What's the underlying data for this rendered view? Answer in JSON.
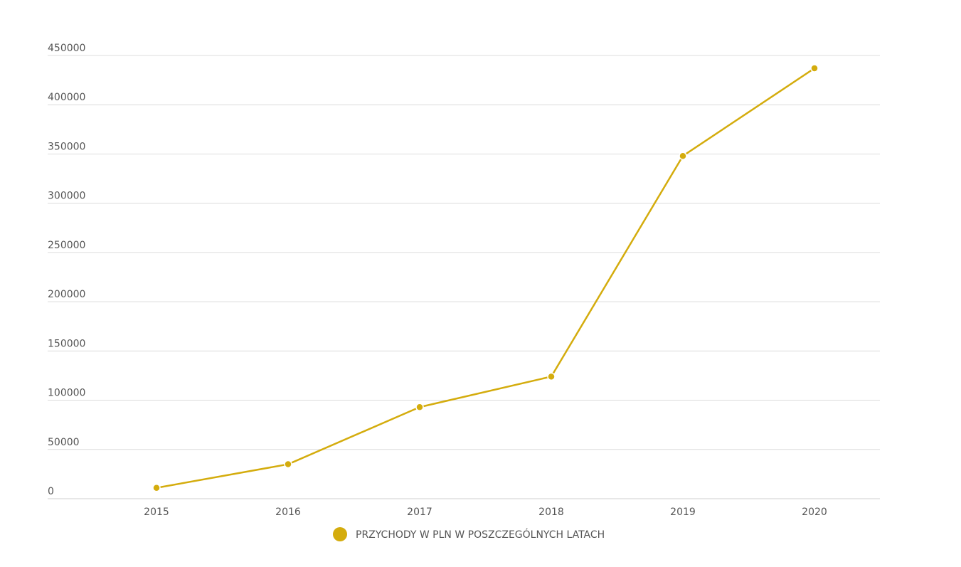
{
  "chart_data": {
    "type": "line",
    "title": "",
    "xlabel": "",
    "ylabel": "",
    "categories": [
      "2015",
      "2016",
      "2017",
      "2018",
      "2019",
      "2020"
    ],
    "series": [
      {
        "name": "PRZYCHODY W PLN W POSZCZEGÓLNYCH LATACH",
        "values": [
          11000,
          35000,
          93000,
          124000,
          348000,
          437000
        ],
        "color": "#d4ac0d"
      }
    ],
    "ylim": [
      0,
      450000
    ],
    "yticks": [
      "0",
      "50000",
      "100000",
      "150000",
      "200000",
      "250000",
      "300000",
      "350000",
      "400000",
      "450000"
    ],
    "grid": true,
    "legend_position": "bottom"
  }
}
